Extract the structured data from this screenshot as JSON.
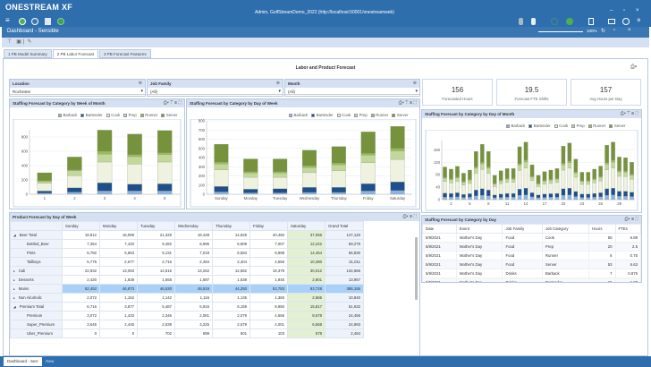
{
  "app": {
    "brand": "ONESTREAM XF",
    "connection": "Admin, GolfStreamDemo_2022 (http://localhost:50001/onestreamweb)",
    "window_buttons": [
      "–",
      "▫",
      "×"
    ],
    "toolbar_icons": [
      "menu-icon",
      "back-icon",
      "globe-icon",
      "copy-icon",
      "forward-icon"
    ],
    "right_icons": [
      "user-icon",
      "user-lock-icon",
      "refresh-icon",
      "sync-icon",
      "clipboard-icon",
      "window-icon",
      "help-icon",
      "settings-icon"
    ]
  },
  "dashboard": {
    "title": "Dashboard - Sensible",
    "zoom": "100%",
    "tabs": [
      {
        "label": "1 PB Model Summary",
        "active": false
      },
      {
        "label": "2 PB Labor Forecast",
        "active": true
      },
      {
        "label": "3 PB Forecast Features",
        "active": false
      }
    ],
    "page_title": "Labor and Product Forecast"
  },
  "filters": [
    {
      "label": "Location",
      "value": "Rochester"
    },
    {
      "label": "Job Family",
      "value": "(All)"
    },
    {
      "label": "Month",
      "value": "(All)"
    }
  ],
  "kpis": [
    {
      "value": "156",
      "label": "Forecasted Hours"
    },
    {
      "value": "19.5",
      "label": "Forecast FTE Shifts"
    },
    {
      "value": "157",
      "label": "Avg Hours per Day"
    }
  ],
  "colors": {
    "Barback": "#8db3e2",
    "Bartender": "#1f4e8c",
    "Cook": "#eef2df",
    "Prep": "#c4d79b",
    "Runner": "#9bbb59",
    "Server": "#76923c",
    "brand_blue": "#2f6ead"
  },
  "chart_data": [
    {
      "type": "bar",
      "stacked": true,
      "title": "Staffing Forecast  by Category by Week of Month",
      "categories": [
        "1",
        "2",
        "3",
        "4",
        "5"
      ],
      "ylim": [
        0,
        900
      ],
      "yticks": [
        0,
        200,
        400,
        600,
        800
      ],
      "legend": "top-right",
      "series": [
        {
          "name": "Barback",
          "values": [
            15,
            30,
            45,
            45,
            45
          ]
        },
        {
          "name": "Bartender",
          "values": [
            30,
            60,
            115,
            95,
            100
          ]
        },
        {
          "name": "Cook",
          "values": [
            110,
            170,
            290,
            280,
            305
          ]
        },
        {
          "name": "Prep",
          "values": [
            25,
            70,
            110,
            105,
            105
          ]
        },
        {
          "name": "Runner",
          "values": [
            10,
            10,
            40,
            30,
            25
          ]
        },
        {
          "name": "Server",
          "values": [
            110,
            180,
            295,
            285,
            310
          ]
        }
      ]
    },
    {
      "type": "bar",
      "stacked": true,
      "title": "Staffing Forecast  by Category by Day of Week",
      "categories": [
        "Sunday",
        "Monday",
        "Tuesday",
        "Wednesday",
        "Thursday",
        "Friday",
        "Saturday"
      ],
      "ylim": [
        0,
        800
      ],
      "yticks": [
        0,
        100,
        200,
        300,
        400,
        500,
        600,
        700,
        800
      ],
      "legend": "top-right",
      "series": [
        {
          "name": "Barback",
          "values": [
            25,
            15,
            15,
            20,
            20,
            35,
            40
          ]
        },
        {
          "name": "Bartender",
          "values": [
            60,
            40,
            45,
            55,
            55,
            80,
            95
          ]
        },
        {
          "name": "Cook",
          "values": [
            180,
            130,
            125,
            160,
            180,
            230,
            245
          ]
        },
        {
          "name": "Prep",
          "values": [
            65,
            45,
            45,
            55,
            65,
            80,
            90
          ]
        },
        {
          "name": "Runner",
          "values": [
            20,
            15,
            15,
            20,
            20,
            20,
            30
          ]
        },
        {
          "name": "Server",
          "values": [
            195,
            140,
            140,
            170,
            180,
            235,
            240
          ]
        }
      ]
    },
    {
      "type": "bar",
      "stacked": true,
      "title": "Staffing Forecast  by Category by Day of Month",
      "categories": [
        "1",
        "2",
        "3",
        "4",
        "5",
        "6",
        "7",
        "8",
        "9",
        "10",
        "11",
        "12",
        "13",
        "14",
        "15",
        "16",
        "17",
        "18",
        "19",
        "20",
        "21",
        "22",
        "23",
        "24",
        "25",
        "26",
        "27",
        "28",
        "29",
        "30",
        "31"
      ],
      "xtick_labels": [
        "2",
        "5",
        "8",
        "11",
        "14",
        "17",
        "20",
        "23",
        "26",
        "29"
      ],
      "ylim": [
        0,
        190
      ],
      "yticks": [
        0,
        40,
        80,
        120,
        160
      ],
      "legend": "top-right",
      "series": [
        {
          "name": "Barback",
          "values": [
            8,
            8,
            9,
            7,
            8,
            12,
            14,
            12,
            6,
            7,
            8,
            8,
            14,
            15,
            9,
            6,
            7,
            8,
            8,
            14,
            15,
            10,
            7,
            7,
            8,
            9,
            14,
            15,
            11,
            11,
            10
          ]
        },
        {
          "name": "Bartender",
          "values": [
            13,
            12,
            13,
            10,
            11,
            19,
            21,
            19,
            9,
            11,
            12,
            12,
            20,
            22,
            13,
            9,
            11,
            11,
            12,
            21,
            22,
            16,
            11,
            11,
            12,
            13,
            21,
            22,
            16,
            16,
            14
          ]
        },
        {
          "name": "Cook",
          "values": [
            37,
            34,
            37,
            30,
            33,
            54,
            62,
            54,
            27,
            33,
            35,
            35,
            60,
            65,
            39,
            27,
            32,
            33,
            35,
            60,
            64,
            46,
            31,
            31,
            34,
            38,
            61,
            65,
            48,
            47,
            42
          ]
        },
        {
          "name": "Prep",
          "values": [
            11,
            10,
            11,
            9,
            10,
            16,
            18,
            16,
            8,
            9,
            10,
            10,
            17,
            19,
            11,
            8,
            9,
            10,
            10,
            17,
            18,
            13,
            9,
            9,
            10,
            11,
            18,
            19,
            14,
            14,
            12
          ]
        },
        {
          "name": "Runner",
          "values": [
            3,
            3,
            3,
            3,
            3,
            5,
            5,
            5,
            2,
            3,
            3,
            3,
            5,
            6,
            3,
            2,
            3,
            3,
            3,
            5,
            5,
            4,
            3,
            3,
            3,
            3,
            5,
            6,
            4,
            4,
            4
          ]
        },
        {
          "name": "Server",
          "values": [
            33,
            31,
            34,
            26,
            30,
            49,
            58,
            49,
            26,
            30,
            32,
            32,
            54,
            58,
            37,
            26,
            28,
            30,
            32,
            55,
            58,
            41,
            27,
            27,
            31,
            34,
            56,
            58,
            44,
            43,
            38
          ]
        }
      ]
    }
  ],
  "product_table": {
    "title": "Product Forecast by Day of Week",
    "columns": [
      "",
      "Sunday",
      "Monday",
      "Tuesday",
      "Wednesday",
      "Thursday",
      "Friday",
      "Saturday",
      "Grand Total"
    ],
    "rows": [
      {
        "label": "Beer Total",
        "toggle": "◢",
        "child": false,
        "values": [
          "18,812",
          "16,099",
          "21,329",
          "18,448",
          "14,925",
          "20,450",
          "37,056",
          "147,120"
        ]
      },
      {
        "label": "Bottled_Beer",
        "child": true,
        "values": [
          "7,354",
          "7,420",
          "9,482",
          "8,996",
          "6,909",
          "7,007",
          "12,242",
          "59,279"
        ]
      },
      {
        "label": "Pints",
        "child": true,
        "values": [
          "5,782",
          "5,963",
          "9,131",
          "7,019",
          "5,583",
          "8,888",
          "14,464",
          "56,830"
        ]
      },
      {
        "label": "Tallboys",
        "child": true,
        "values": [
          "5,775",
          "2,677",
          "2,716",
          "2,484",
          "2,404",
          "4,555",
          "10,390",
          "31,011"
        ]
      },
      {
        "label": "Cali",
        "toggle": "▸",
        "child": false,
        "values": [
          "22,932",
          "13,093",
          "14,516",
          "13,252",
          "12,682",
          "19,379",
          "30,012",
          "134,666"
        ]
      },
      {
        "label": "Desserts",
        "toggle": "▸",
        "child": false,
        "values": [
          "2,420",
          "1,838",
          "1,658",
          "1,687",
          "1,538",
          "1,845",
          "2,801",
          "13,957"
        ]
      },
      {
        "label": "Mains",
        "toggle": "▸",
        "child": false,
        "highlight": true,
        "values": [
          "62,452",
          "46,873",
          "46,530",
          "48,519",
          "44,250",
          "53,783",
          "83,728",
          "386,156"
        ]
      },
      {
        "label": "Non Alcoholic",
        "toggle": "▸",
        "child": false,
        "values": [
          "2,072",
          "1,152",
          "1,142",
          "1,116",
          "1,135",
          "1,360",
          "2,665",
          "10,840"
        ]
      },
      {
        "label": "Premium Total",
        "toggle": "◢",
        "child": false,
        "values": [
          "6,716",
          "3,877",
          "5,487",
          "5,915",
          "5,159",
          "8,960",
          "15,817",
          "51,932"
        ]
      },
      {
        "label": "Premium",
        "child": true,
        "values": [
          "3,072",
          "1,433",
          "2,346",
          "2,081",
          "2,079",
          "4,656",
          "8,678",
          "24,455"
        ]
      },
      {
        "label": "Super_Premium",
        "child": true,
        "values": [
          "3,645",
          "2,445",
          "2,539",
          "3,225",
          "2,579",
          "4,001",
          "6,568",
          "24,993"
        ]
      },
      {
        "label": "Uber_Premium",
        "child": true,
        "values": [
          "0",
          "0",
          "702",
          "599",
          "501",
          "103",
          "578",
          "2,484"
        ]
      }
    ]
  },
  "staffing_table": {
    "title": "Staffing Forecast by Category by Day",
    "columns": [
      "Date",
      "Event",
      "Job Family",
      "Job Category",
      "Hours",
      "FTEs"
    ],
    "rows": [
      [
        "5/9/2021",
        "Mother's Day",
        "Food",
        "Cook",
        "55",
        "6.88"
      ],
      [
        "5/9/2021",
        "Mother's Day",
        "Food",
        "Prep",
        "20",
        "2.5"
      ],
      [
        "5/9/2021",
        "Mother's Day",
        "Food",
        "Runner",
        "6",
        "0.75"
      ],
      [
        "5/9/2021",
        "Mother's Day",
        "Food",
        "Server",
        "53",
        "6.63"
      ],
      [
        "5/9/2021",
        "Mother's Day",
        "Drinks",
        "Barback",
        "7",
        "0.875"
      ],
      [
        "5/9/2021",
        "Mother's Day",
        "Drinks",
        "Bartender",
        "15",
        "1.88"
      ]
    ]
  },
  "bottom_tabs": [
    {
      "label": "Dashboard - Sen:",
      "active": true
    },
    {
      "label": "New",
      "active": false
    }
  ]
}
